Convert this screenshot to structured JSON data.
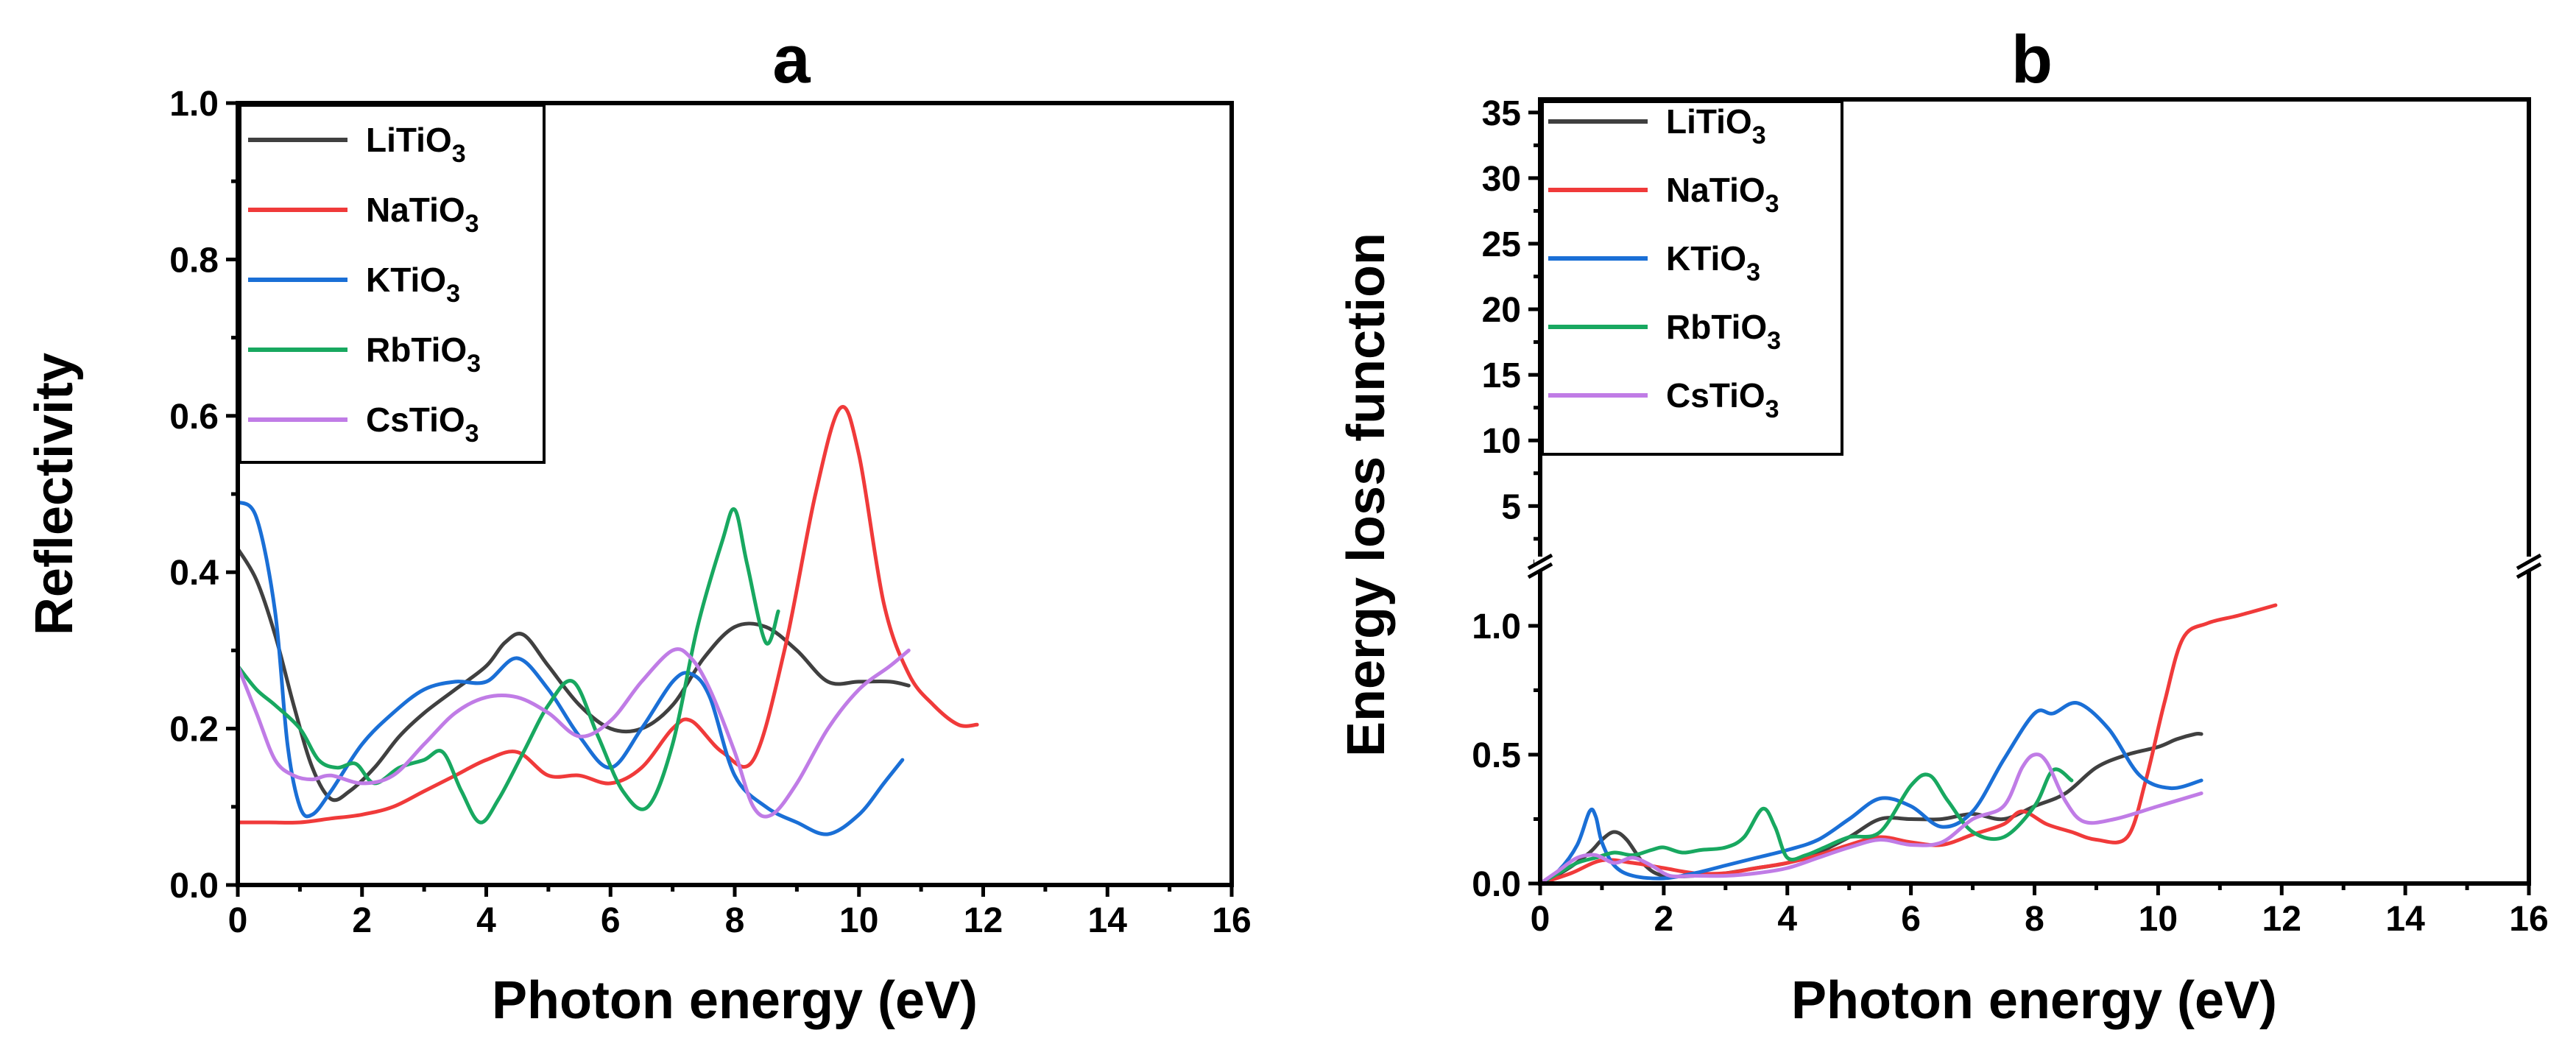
{
  "chart_data": [
    {
      "panel_label": "a",
      "type": "line",
      "xlabel": "Photon energy (eV)",
      "ylabel": "Reflectivity",
      "xlim": [
        0,
        16
      ],
      "ylim": [
        0,
        1.0
      ],
      "xticks": [
        "0",
        "2",
        "4",
        "6",
        "8",
        "10",
        "12",
        "14",
        "16"
      ],
      "yticks": [
        "0.0",
        "0.2",
        "0.4",
        "0.6",
        "0.8",
        "1.0"
      ],
      "legend_position": "top-left",
      "series": [
        {
          "name": "LiTiO3",
          "base": "LiTiO",
          "sub": "3",
          "color": "#404040",
          "x": [
            0,
            0.3,
            0.6,
            0.9,
            1.2,
            1.5,
            1.8,
            2.2,
            2.6,
            3.0,
            3.5,
            4.0,
            4.3,
            4.6,
            5.0,
            5.5,
            6.0,
            6.5,
            7.0,
            7.5,
            8.0,
            8.5,
            9.0,
            9.5,
            10.0,
            10.5,
            10.8
          ],
          "y": [
            0.43,
            0.39,
            0.32,
            0.23,
            0.15,
            0.11,
            0.12,
            0.15,
            0.19,
            0.22,
            0.25,
            0.28,
            0.31,
            0.32,
            0.28,
            0.23,
            0.2,
            0.2,
            0.23,
            0.29,
            0.33,
            0.33,
            0.3,
            0.26,
            0.26,
            0.26,
            0.255
          ]
        },
        {
          "name": "NaTiO3",
          "base": "NaTiO",
          "sub": "3",
          "color": "#f03a3a",
          "x": [
            0,
            0.5,
            1.0,
            1.5,
            2.0,
            2.5,
            3.0,
            3.5,
            4.0,
            4.5,
            5.0,
            5.5,
            6.0,
            6.5,
            7.0,
            7.3,
            7.8,
            8.3,
            8.8,
            9.3,
            9.7,
            10.0,
            10.4,
            10.8,
            11.2,
            11.6,
            11.9
          ],
          "y": [
            0.08,
            0.08,
            0.08,
            0.085,
            0.09,
            0.1,
            0.12,
            0.14,
            0.16,
            0.17,
            0.14,
            0.14,
            0.13,
            0.15,
            0.2,
            0.21,
            0.17,
            0.16,
            0.3,
            0.5,
            0.61,
            0.55,
            0.36,
            0.27,
            0.23,
            0.205,
            0.205
          ]
        },
        {
          "name": "KTiO3",
          "base": "KTiO",
          "sub": "3",
          "color": "#1a6fd6",
          "x": [
            0,
            0.3,
            0.6,
            0.8,
            1.0,
            1.2,
            1.5,
            2.0,
            2.5,
            3.0,
            3.5,
            4.0,
            4.5,
            5.0,
            5.5,
            6.0,
            6.5,
            7.0,
            7.3,
            7.6,
            8.0,
            8.5,
            9.0,
            9.5,
            10.0,
            10.4,
            10.7
          ],
          "y": [
            0.49,
            0.47,
            0.35,
            0.18,
            0.1,
            0.09,
            0.12,
            0.18,
            0.22,
            0.25,
            0.26,
            0.26,
            0.29,
            0.25,
            0.19,
            0.15,
            0.2,
            0.26,
            0.27,
            0.24,
            0.14,
            0.1,
            0.08,
            0.065,
            0.09,
            0.13,
            0.16
          ]
        },
        {
          "name": "RbTiO3",
          "base": "RbTiO",
          "sub": "3",
          "color": "#18a860",
          "x": [
            0,
            0.3,
            0.6,
            1.0,
            1.3,
            1.6,
            1.9,
            2.2,
            2.6,
            3.0,
            3.3,
            3.6,
            3.9,
            4.2,
            4.6,
            5.0,
            5.4,
            5.8,
            6.2,
            6.6,
            7.0,
            7.4,
            7.8,
            8.0,
            8.2,
            8.5,
            8.7
          ],
          "y": [
            0.28,
            0.25,
            0.23,
            0.2,
            0.16,
            0.15,
            0.155,
            0.13,
            0.15,
            0.16,
            0.17,
            0.12,
            0.08,
            0.11,
            0.17,
            0.23,
            0.26,
            0.19,
            0.12,
            0.1,
            0.18,
            0.33,
            0.44,
            0.48,
            0.41,
            0.31,
            0.35
          ]
        },
        {
          "name": "CsTiO3",
          "base": "CsTiO",
          "sub": "3",
          "color": "#c07ce6",
          "x": [
            0,
            0.3,
            0.6,
            0.9,
            1.2,
            1.5,
            2.0,
            2.5,
            3.0,
            3.5,
            4.0,
            4.5,
            5.0,
            5.5,
            6.0,
            6.5,
            7.0,
            7.3,
            7.6,
            8.0,
            8.3,
            8.6,
            9.0,
            9.5,
            10.0,
            10.5,
            10.8
          ],
          "y": [
            0.28,
            0.22,
            0.16,
            0.14,
            0.135,
            0.14,
            0.13,
            0.14,
            0.18,
            0.22,
            0.24,
            0.24,
            0.22,
            0.19,
            0.21,
            0.26,
            0.3,
            0.29,
            0.25,
            0.17,
            0.1,
            0.09,
            0.13,
            0.2,
            0.25,
            0.28,
            0.3
          ]
        }
      ]
    },
    {
      "panel_label": "b",
      "type": "line",
      "xlabel": "Photon energy (eV)",
      "ylabel": "Energy loss function",
      "xlim": [
        0,
        16
      ],
      "ylim_lower": [
        0,
        1.2
      ],
      "ylim_upper": [
        1.2,
        36
      ],
      "broken_y_axis": true,
      "xticks": [
        "0",
        "2",
        "4",
        "6",
        "8",
        "10",
        "12",
        "14",
        "16"
      ],
      "yticks_lower": [
        "0.0",
        "0.5",
        "1.0"
      ],
      "yticks_upper": [
        "5",
        "10",
        "15",
        "20",
        "25",
        "30",
        "35"
      ],
      "legend_position": "top-left",
      "series": [
        {
          "name": "LiTiO3",
          "base": "LiTiO",
          "sub": "3",
          "color": "#404040",
          "x": [
            0,
            0.4,
            0.8,
            1.0,
            1.2,
            1.4,
            1.7,
            2.0,
            2.5,
            3.0,
            3.5,
            4.0,
            4.5,
            5.0,
            5.5,
            6.0,
            6.5,
            7.0,
            7.5,
            8.0,
            8.5,
            9.0,
            9.5,
            10.0,
            10.3,
            10.6,
            10.7
          ],
          "y": [
            0,
            0.05,
            0.12,
            0.17,
            0.2,
            0.17,
            0.07,
            0.03,
            0.03,
            0.04,
            0.06,
            0.08,
            0.12,
            0.18,
            0.25,
            0.25,
            0.25,
            0.27,
            0.25,
            0.3,
            0.35,
            0.45,
            0.5,
            0.53,
            0.56,
            0.58,
            0.58
          ]
        },
        {
          "name": "NaTiO3",
          "base": "NaTiO",
          "sub": "3",
          "color": "#f03a3a",
          "x": [
            0,
            0.5,
            1.0,
            1.5,
            2.0,
            2.5,
            3.0,
            3.5,
            4.0,
            4.5,
            5.0,
            5.5,
            6.0,
            6.5,
            7.0,
            7.5,
            7.8,
            8.2,
            8.6,
            9.0,
            9.5,
            9.8,
            10.1,
            10.4,
            10.8,
            11.3,
            11.9
          ],
          "y": [
            0,
            0.04,
            0.09,
            0.08,
            0.06,
            0.04,
            0.04,
            0.06,
            0.08,
            0.11,
            0.15,
            0.18,
            0.16,
            0.15,
            0.19,
            0.23,
            0.28,
            0.23,
            0.2,
            0.17,
            0.18,
            0.4,
            0.7,
            0.95,
            1.01,
            1.04,
            1.08
          ]
        },
        {
          "name": "KTiO3",
          "base": "KTiO",
          "sub": "3",
          "color": "#1a6fd6",
          "x": [
            0,
            0.3,
            0.6,
            0.8,
            0.9,
            1.0,
            1.2,
            1.5,
            2.0,
            2.5,
            3.0,
            3.5,
            4.0,
            4.5,
            5.0,
            5.5,
            6.0,
            6.5,
            7.0,
            7.5,
            8.0,
            8.3,
            8.7,
            9.2,
            9.7,
            10.2,
            10.7
          ],
          "y": [
            0,
            0.05,
            0.15,
            0.28,
            0.26,
            0.16,
            0.07,
            0.03,
            0.02,
            0.04,
            0.07,
            0.1,
            0.13,
            0.17,
            0.25,
            0.33,
            0.3,
            0.22,
            0.28,
            0.48,
            0.66,
            0.66,
            0.7,
            0.6,
            0.42,
            0.37,
            0.4
          ]
        },
        {
          "name": "RbTiO3",
          "base": "RbTiO",
          "sub": "3",
          "color": "#18a860",
          "x": [
            0,
            0.3,
            0.6,
            0.9,
            1.2,
            1.5,
            1.8,
            2.0,
            2.3,
            2.6,
            3.0,
            3.3,
            3.6,
            3.8,
            4.0,
            4.3,
            4.6,
            5.0,
            5.5,
            6.0,
            6.3,
            6.6,
            7.0,
            7.5,
            8.0,
            8.3,
            8.6
          ],
          "y": [
            0,
            0.04,
            0.08,
            0.1,
            0.12,
            0.11,
            0.13,
            0.14,
            0.12,
            0.13,
            0.14,
            0.18,
            0.29,
            0.22,
            0.1,
            0.11,
            0.14,
            0.18,
            0.2,
            0.38,
            0.42,
            0.32,
            0.2,
            0.18,
            0.3,
            0.44,
            0.4
          ]
        },
        {
          "name": "CsTiO3",
          "base": "CsTiO",
          "sub": "3",
          "color": "#c07ce6",
          "x": [
            0,
            0.3,
            0.6,
            0.9,
            1.2,
            1.5,
            1.8,
            2.1,
            2.5,
            3.0,
            3.5,
            4.0,
            4.5,
            5.0,
            5.5,
            6.0,
            6.5,
            7.0,
            7.5,
            7.8,
            8.0,
            8.2,
            8.5,
            8.8,
            9.3,
            10.0,
            10.7
          ],
          "y": [
            0,
            0.05,
            0.1,
            0.11,
            0.08,
            0.1,
            0.07,
            0.03,
            0.03,
            0.03,
            0.04,
            0.06,
            0.1,
            0.14,
            0.17,
            0.15,
            0.16,
            0.25,
            0.3,
            0.45,
            0.5,
            0.47,
            0.32,
            0.24,
            0.25,
            0.3,
            0.35
          ]
        }
      ]
    }
  ]
}
